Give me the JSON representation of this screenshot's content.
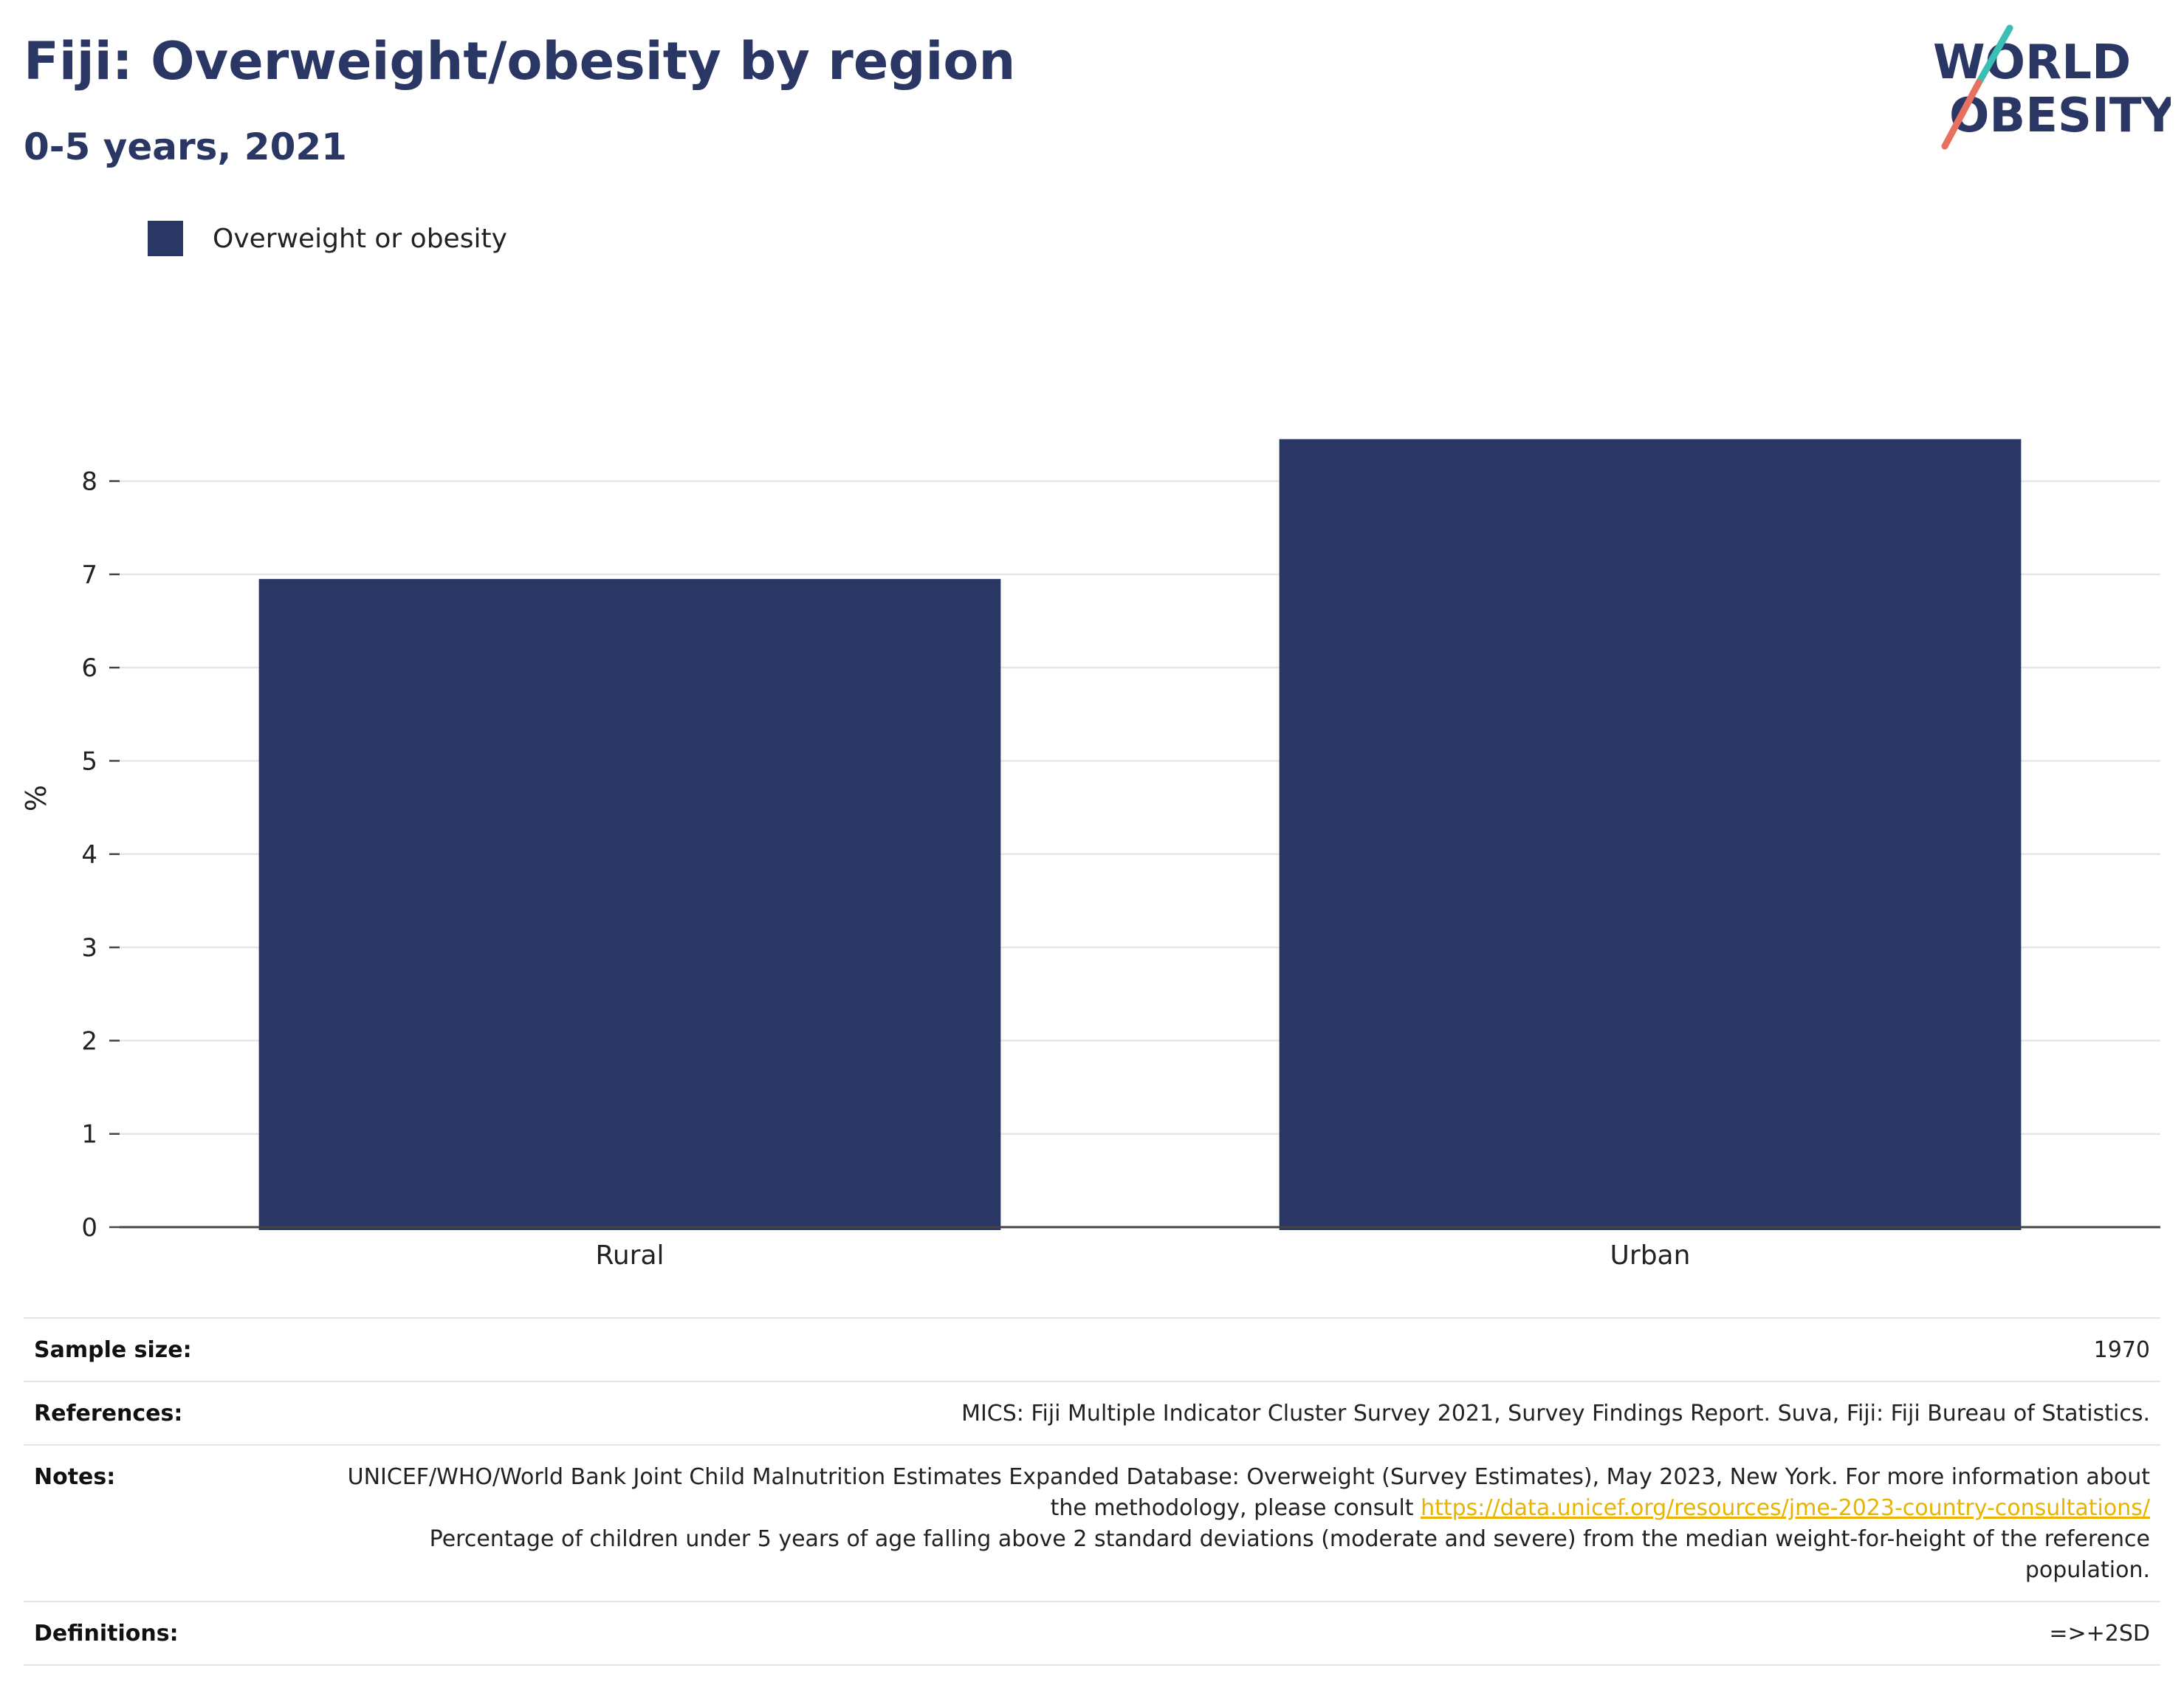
{
  "header": {
    "title": "Fiji: Overweight/obesity by region",
    "subtitle": "0-5 years, 2021"
  },
  "logo": {
    "line1": "WORLD",
    "line2": "OBESITY",
    "colors": {
      "text": "#2a3663",
      "slash_top": "#3bbfb5",
      "slash_bottom": "#e8705f"
    }
  },
  "legend": {
    "label": "Overweight or obesity",
    "color": "#2a3663"
  },
  "chart_data": {
    "type": "bar",
    "categories": [
      "Rural",
      "Urban"
    ],
    "series": [
      {
        "name": "Overweight or obesity",
        "values": [
          6.95,
          8.45
        ],
        "color": "#2a3663"
      }
    ],
    "ylabel": "%",
    "xlabel": "",
    "ylim": [
      0,
      9.2
    ],
    "yticks": [
      0,
      1,
      2,
      3,
      4,
      5,
      6,
      7,
      8
    ],
    "grid": true,
    "legend_position": "top-left"
  },
  "info_table": {
    "sample_size_label": "Sample size:",
    "sample_size_value": "1970",
    "references_label": "References:",
    "references_value": "MICS: Fiji Multiple Indicator Cluster Survey 2021, Survey Findings Report. Suva, Fiji: Fiji Bureau of Statistics.",
    "notes_label": "Notes:",
    "notes_text_1": "UNICEF/WHO/World Bank Joint Child Malnutrition Estimates Expanded Database: Overweight (Survey Estimates), May 2023, New York. For more information about the methodology, please consult ",
    "notes_link": "https://data.unicef.org/resources/jme-2023-country-consultations/",
    "notes_text_2": "Percentage of children under 5 years of age falling above 2 standard deviations (moderate and severe) from the median weight-for-height of the reference population.",
    "definitions_label": "Definitions:",
    "definitions_value": "=>+2SD"
  }
}
